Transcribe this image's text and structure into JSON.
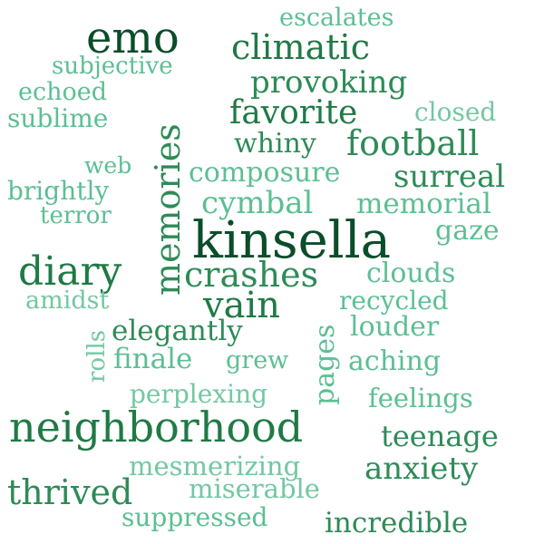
{
  "word_cloud": {
    "words": {
      "emo": "emo",
      "escalates": "escalates",
      "climatic": "climatic",
      "subjective": "subjective",
      "provoking": "provoking",
      "echoed": "echoed",
      "memories": "memories",
      "favorite": "favorite",
      "closed": "closed",
      "sublime": "sublime",
      "whiny": "whiny",
      "football": "football",
      "web": "web",
      "composure": "composure",
      "surreal": "surreal",
      "brightly": "brightly",
      "cymbal": "cymbal",
      "memorial": "memorial",
      "terror": "terror",
      "kinsella": "kinsella",
      "gaze": "gaze",
      "diary": "diary",
      "crashes": "crashes",
      "clouds": "clouds",
      "amidst": "amidst",
      "vain": "vain",
      "recycled": "recycled",
      "pages": "pages",
      "louder": "louder",
      "rolls": "rolls",
      "elegantly": "elegantly",
      "finale": "finale",
      "grew": "grew",
      "aching": "aching",
      "perplexing": "perplexing",
      "feelings": "feelings",
      "neighborhood": "neighborhood",
      "teenage": "teenage",
      "mesmerizing": "mesmerizing",
      "anxiety": "anxiety",
      "thrived": "thrived",
      "miserable": "miserable",
      "suppressed": "suppressed",
      "incredible": "incredible"
    }
  }
}
